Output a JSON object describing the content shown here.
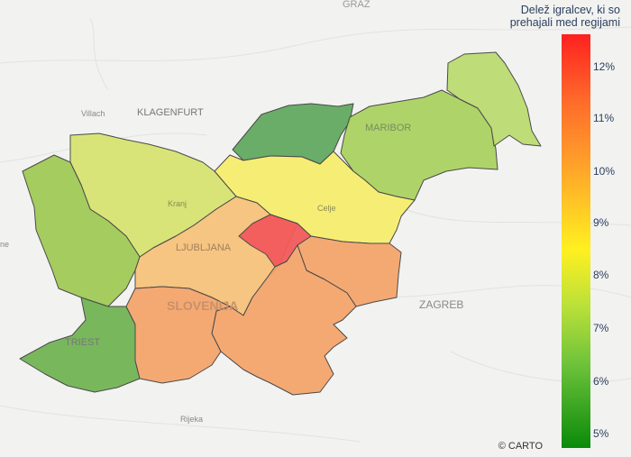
{
  "legend": {
    "title_line1": "Delež igralcev, ki so",
    "title_line2": "prehajali med regijami",
    "ticks": [
      "12%",
      "11%",
      "10%",
      "9%",
      "8%",
      "7%",
      "6%",
      "5%"
    ]
  },
  "places": {
    "graz": "GRAZ",
    "villach": "Villach",
    "klagenfurt": "KLAGENFURT",
    "maribor": "MARIBOR",
    "kranj": "Kranj",
    "celje": "Celje",
    "ljubljana": "LJUBLJANA",
    "slovenia": "SLOVENIJA",
    "zagreb": "ZAGREB",
    "triest": "TRIEST",
    "rijeka": "Rijeka",
    "ne": "ne"
  },
  "credit": "© CARTO",
  "colors": {
    "background": "#f2f2f0",
    "border": "#4a4a4a",
    "dark_green": "#5aa55a",
    "light_green": "#9fce52",
    "yellowgreen": "#cfe066",
    "yellow": "#f5ec6e",
    "light_orange": "#f6c27a",
    "orange": "#f3a46b",
    "red": "#f25a5a"
  }
}
